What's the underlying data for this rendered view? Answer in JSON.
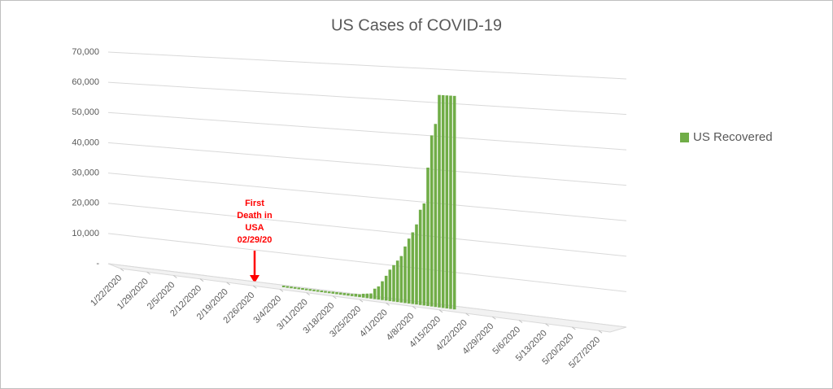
{
  "chart_data": {
    "type": "bar",
    "title": "US Cases of COVID-19",
    "series": [
      {
        "name": "US Recovered",
        "color": "#70ad47",
        "x": [
          "3/5/2020",
          "3/6/2020",
          "3/7/2020",
          "3/8/2020",
          "3/9/2020",
          "3/10/2020",
          "3/11/2020",
          "3/12/2020",
          "3/13/2020",
          "3/14/2020",
          "3/15/2020",
          "3/16/2020",
          "3/17/2020",
          "3/18/2020",
          "3/19/2020",
          "3/20/2020",
          "3/21/2020",
          "3/22/2020",
          "3/23/2020",
          "3/24/2020",
          "3/25/2020",
          "3/26/2020",
          "3/27/2020",
          "3/28/2020",
          "3/29/2020",
          "3/30/2020",
          "3/31/2020",
          "4/1/2020",
          "4/2/2020",
          "4/3/2020",
          "4/4/2020",
          "4/5/2020",
          "4/6/2020",
          "4/7/2020",
          "4/8/2020",
          "4/9/2020",
          "4/10/2020",
          "4/11/2020",
          "4/12/2020",
          "4/13/2020",
          "4/14/2020",
          "4/15/2020",
          "4/16/2020",
          "4/17/2020",
          "4/18/2020",
          "4/19/2020"
        ],
        "values": [
          7,
          7,
          7,
          7,
          7,
          8,
          8,
          12,
          12,
          12,
          12,
          17,
          17,
          106,
          108,
          147,
          147,
          176,
          178,
          348,
          361,
          681,
          869,
          1072,
          2665,
          3500,
          5200,
          7000,
          9000,
          10500,
          12000,
          13500,
          16500,
          19000,
          21000,
          23500,
          28000,
          30000,
          40800,
          50500,
          54000,
          62700,
          62700,
          62700,
          62700,
          62700
        ]
      }
    ],
    "xlim": [
      "1/22/2020",
      "5/30/2020"
    ],
    "xticks": [
      "1/22/2020",
      "1/29/2020",
      "2/5/2020",
      "2/12/2020",
      "2/19/2020",
      "2/26/2020",
      "3/4/2020",
      "3/11/2020",
      "3/18/2020",
      "3/25/2020",
      "4/1/2020",
      "4/8/2020",
      "4/15/2020",
      "4/22/2020",
      "4/29/2020",
      "5/6/2020",
      "5/13/2020",
      "5/20/2020",
      "5/27/2020"
    ],
    "ylim": [
      0,
      70000
    ],
    "yticks": [
      {
        "value": 0,
        "label": "-"
      },
      {
        "value": 10000,
        "label": "10,000"
      },
      {
        "value": 20000,
        "label": "20,000"
      },
      {
        "value": 30000,
        "label": "30,000"
      },
      {
        "value": 40000,
        "label": "40,000"
      },
      {
        "value": 50000,
        "label": "50,000"
      },
      {
        "value": 60000,
        "label": "60,000"
      },
      {
        "value": 70000,
        "label": "70,000"
      }
    ],
    "grid": true,
    "legend": "right",
    "annotation": {
      "lines": [
        "First",
        "Death in",
        "USA",
        "02/29/20"
      ],
      "color": "#ff0000"
    }
  }
}
